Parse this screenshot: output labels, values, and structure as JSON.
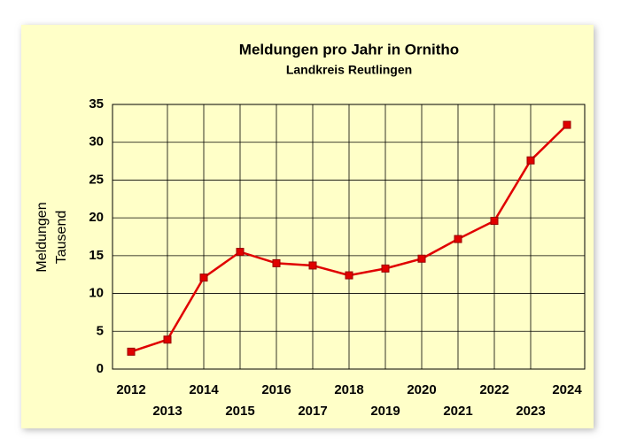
{
  "chart_data": {
    "type": "line",
    "title": "Meldungen pro Jahr in Ornitho",
    "subtitle": "Landkreis Reutlingen",
    "ylabel": [
      "Meldungen",
      "Tausend"
    ],
    "categories": [
      "2012",
      "2013",
      "2014",
      "2015",
      "2016",
      "2017",
      "2018",
      "2019",
      "2020",
      "2021",
      "2022",
      "2023",
      "2024"
    ],
    "series": [
      {
        "name": "Meldungen",
        "color": "#e00000",
        "values": [
          2.3,
          3.9,
          12.1,
          15.5,
          14.0,
          13.7,
          12.4,
          13.3,
          14.6,
          17.2,
          19.6,
          27.6,
          32.3
        ]
      }
    ],
    "ylim": [
      0,
      35
    ],
    "yticks": [
      0,
      5,
      10,
      15,
      20,
      25,
      30,
      35
    ],
    "grid": true
  }
}
